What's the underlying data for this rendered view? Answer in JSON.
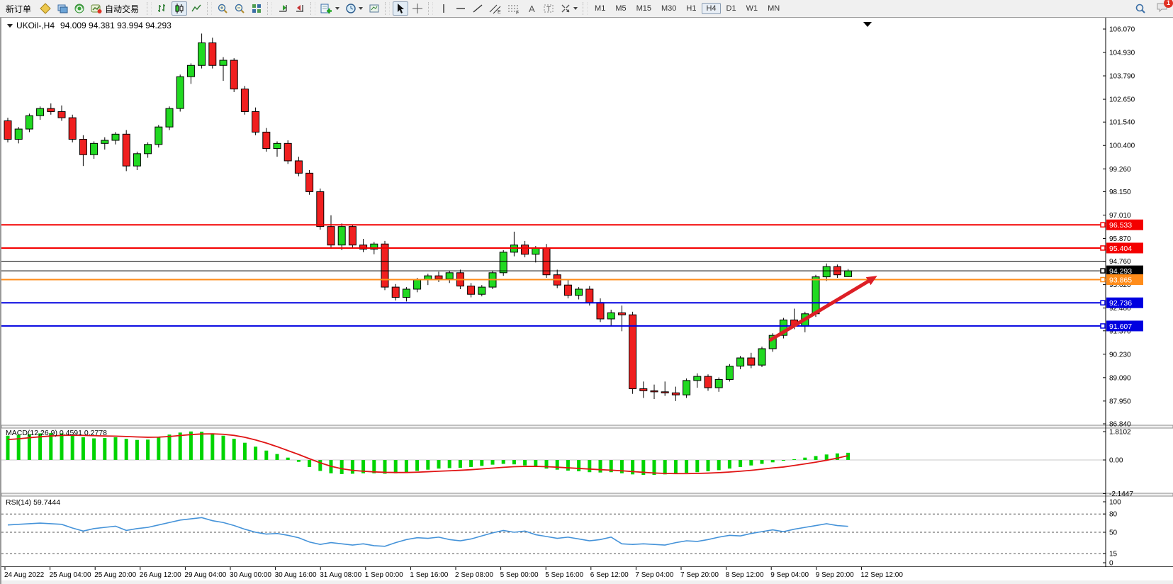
{
  "toolbar": {
    "new_order_label": "新订单",
    "auto_trading_label": "自动交易",
    "timeframes": [
      "M1",
      "M5",
      "M15",
      "M30",
      "H1",
      "H4",
      "D1",
      "W1",
      "MN"
    ],
    "active_timeframe": "H4",
    "notification_count": "1"
  },
  "chart_data": {
    "type": "candlestick+indicators",
    "symbol_period": "UKOil-,H4",
    "ohlc_line": "94.009 94.381 93.994 94.293",
    "accent_colors": {
      "bull": "#21d921",
      "bear": "#f01f1f",
      "wick": "#000000",
      "macd_hist": "#00d400",
      "macd_signal": "#e01515",
      "rsi_line": "#4593d9",
      "arrow": "#dd1f26",
      "line_red": "#f40000",
      "line_orange": "#ff8c1a",
      "line_blue": "#0000e0",
      "line_black": "#000000"
    },
    "price_axis_labels": [
      "106.070",
      "104.930",
      "103.790",
      "102.650",
      "101.540",
      "100.400",
      "99.260",
      "98.150",
      "97.010",
      "95.870",
      "94.760",
      "93.620",
      "92.480",
      "91.370",
      "90.230",
      "89.090",
      "87.950",
      "86.840"
    ],
    "h_lines": [
      {
        "price": 96.533,
        "label": "96.533",
        "color": "#f40000",
        "width": 2,
        "badge": true
      },
      {
        "price": 95.404,
        "label": "95.404",
        "color": "#f40000",
        "width": 2,
        "badge": true
      },
      {
        "price": 94.76,
        "label": "",
        "color": "#000000",
        "width": 1,
        "badge": false
      },
      {
        "price": 94.293,
        "label": "94.293",
        "color": "#000000",
        "width": 1,
        "badge": true
      },
      {
        "price": 93.865,
        "label": "93.865",
        "color": "#ff8c1a",
        "width": 2,
        "badge": true
      },
      {
        "price": 92.736,
        "label": "92.736",
        "color": "#0000e0",
        "width": 2,
        "badge": true
      },
      {
        "price": 91.607,
        "label": "91.607",
        "color": "#0000e0",
        "width": 2,
        "badge": true
      }
    ],
    "candles": [
      [
        101.6,
        101.75,
        100.55,
        100.7
      ],
      [
        100.7,
        101.3,
        100.5,
        101.2
      ],
      [
        101.2,
        101.95,
        101.05,
        101.85
      ],
      [
        101.85,
        102.3,
        101.65,
        102.2
      ],
      [
        102.2,
        102.45,
        101.9,
        102.05
      ],
      [
        102.05,
        102.35,
        101.6,
        101.75
      ],
      [
        101.75,
        101.9,
        100.55,
        100.7
      ],
      [
        100.7,
        100.9,
        99.4,
        99.95
      ],
      [
        99.95,
        100.6,
        99.75,
        100.5
      ],
      [
        100.5,
        100.8,
        100.2,
        100.65
      ],
      [
        100.65,
        101.05,
        100.45,
        100.95
      ],
      [
        100.95,
        101.15,
        99.15,
        99.4
      ],
      [
        99.4,
        100.1,
        99.2,
        100.0
      ],
      [
        100.0,
        100.55,
        99.8,
        100.45
      ],
      [
        100.45,
        101.4,
        100.3,
        101.3
      ],
      [
        101.3,
        102.3,
        101.15,
        102.2
      ],
      [
        102.2,
        103.85,
        102.05,
        103.75
      ],
      [
        103.75,
        104.4,
        103.4,
        104.3
      ],
      [
        104.3,
        105.85,
        104.15,
        105.4
      ],
      [
        105.4,
        105.65,
        104.15,
        104.3
      ],
      [
        104.3,
        104.7,
        103.55,
        104.55
      ],
      [
        104.55,
        104.65,
        103.0,
        103.15
      ],
      [
        103.15,
        103.3,
        101.9,
        102.05
      ],
      [
        102.05,
        102.25,
        100.9,
        101.05
      ],
      [
        101.05,
        101.25,
        100.1,
        100.25
      ],
      [
        100.25,
        100.6,
        99.85,
        100.5
      ],
      [
        100.5,
        100.65,
        99.5,
        99.65
      ],
      [
        99.65,
        99.85,
        98.9,
        99.05
      ],
      [
        99.05,
        99.2,
        98.0,
        98.15
      ],
      [
        98.15,
        98.3,
        96.3,
        96.45
      ],
      [
        96.45,
        97.0,
        95.4,
        95.55
      ],
      [
        95.55,
        96.6,
        95.3,
        96.45
      ],
      [
        96.45,
        96.55,
        95.4,
        95.55
      ],
      [
        95.55,
        95.85,
        95.2,
        95.35
      ],
      [
        95.35,
        95.7,
        95.1,
        95.6
      ],
      [
        95.6,
        95.75,
        93.35,
        93.5
      ],
      [
        93.5,
        93.65,
        92.85,
        93.0
      ],
      [
        93.0,
        93.5,
        92.8,
        93.4
      ],
      [
        93.4,
        93.95,
        93.25,
        93.85
      ],
      [
        93.85,
        94.15,
        93.6,
        94.05
      ],
      [
        94.05,
        94.25,
        93.75,
        93.9
      ],
      [
        93.9,
        94.3,
        93.7,
        94.2
      ],
      [
        94.2,
        94.35,
        93.4,
        93.55
      ],
      [
        93.55,
        93.7,
        93.0,
        93.15
      ],
      [
        93.15,
        93.6,
        93.05,
        93.5
      ],
      [
        93.5,
        94.3,
        93.4,
        94.2
      ],
      [
        94.2,
        95.3,
        94.05,
        95.2
      ],
      [
        95.2,
        96.2,
        95.0,
        95.55
      ],
      [
        95.55,
        95.75,
        94.95,
        95.1
      ],
      [
        95.1,
        95.5,
        94.7,
        95.4
      ],
      [
        95.4,
        95.6,
        93.95,
        94.1
      ],
      [
        94.1,
        94.35,
        93.45,
        93.6
      ],
      [
        93.6,
        93.85,
        92.95,
        93.1
      ],
      [
        93.1,
        93.5,
        92.9,
        93.4
      ],
      [
        93.4,
        93.55,
        92.6,
        92.75
      ],
      [
        92.75,
        92.95,
        91.8,
        91.95
      ],
      [
        91.95,
        92.4,
        91.6,
        92.25
      ],
      [
        92.25,
        92.6,
        91.35,
        92.15
      ],
      [
        92.15,
        92.3,
        88.3,
        88.55
      ],
      [
        88.55,
        88.9,
        88.1,
        88.45
      ],
      [
        88.45,
        88.75,
        88.05,
        88.4
      ],
      [
        88.4,
        88.9,
        88.2,
        88.35
      ],
      [
        88.35,
        88.65,
        87.95,
        88.25
      ],
      [
        88.25,
        89.05,
        88.1,
        88.95
      ],
      [
        88.95,
        89.3,
        88.6,
        89.15
      ],
      [
        89.15,
        89.25,
        88.45,
        88.6
      ],
      [
        88.6,
        89.1,
        88.4,
        89.0
      ],
      [
        89.0,
        89.75,
        88.9,
        89.65
      ],
      [
        89.65,
        90.15,
        89.5,
        90.05
      ],
      [
        90.05,
        90.3,
        89.55,
        89.7
      ],
      [
        89.7,
        90.6,
        89.6,
        90.5
      ],
      [
        90.5,
        91.25,
        90.35,
        91.15
      ],
      [
        91.15,
        92.0,
        91.0,
        91.9
      ],
      [
        91.9,
        92.45,
        91.45,
        91.6
      ],
      [
        91.6,
        92.3,
        91.3,
        92.2
      ],
      [
        92.2,
        94.1,
        92.05,
        94.0
      ],
      [
        94.0,
        94.65,
        93.8,
        94.5
      ],
      [
        94.5,
        94.6,
        93.95,
        94.1
      ],
      [
        94.009,
        94.381,
        93.994,
        94.293
      ]
    ],
    "arrow": {
      "from_index": 70.7,
      "from_price": 90.9,
      "to_index": 80.7,
      "to_price": 94.05
    },
    "macd": {
      "label": "MACD(12,26,9) 0.4591 0.2778",
      "axis_labels": [
        "1.8102",
        "0.00",
        "-2.1447"
      ],
      "histogram": [
        1.55,
        1.6,
        1.65,
        1.7,
        1.72,
        1.7,
        1.6,
        1.45,
        1.38,
        1.4,
        1.45,
        1.35,
        1.28,
        1.3,
        1.45,
        1.62,
        1.75,
        1.82,
        1.8,
        1.7,
        1.55,
        1.35,
        1.1,
        0.85,
        0.6,
        0.38,
        0.15,
        -0.12,
        -0.45,
        -0.7,
        -0.85,
        -0.9,
        -0.88,
        -0.85,
        -0.85,
        -0.88,
        -0.85,
        -0.78,
        -0.7,
        -0.62,
        -0.55,
        -0.52,
        -0.5,
        -0.45,
        -0.38,
        -0.3,
        -0.25,
        -0.28,
        -0.35,
        -0.45,
        -0.55,
        -0.62,
        -0.68,
        -0.72,
        -0.78,
        -0.8,
        -0.78,
        -0.85,
        -0.92,
        -0.95,
        -0.95,
        -0.92,
        -0.88,
        -0.82,
        -0.78,
        -0.72,
        -0.65,
        -0.55,
        -0.45,
        -0.35,
        -0.25,
        -0.15,
        -0.05,
        0.05,
        0.15,
        0.25,
        0.35,
        0.42,
        0.4591
      ],
      "signal": [
        1.3,
        1.35,
        1.42,
        1.48,
        1.53,
        1.57,
        1.58,
        1.57,
        1.55,
        1.53,
        1.52,
        1.5,
        1.47,
        1.45,
        1.46,
        1.5,
        1.56,
        1.62,
        1.66,
        1.67,
        1.64,
        1.57,
        1.45,
        1.28,
        1.08,
        0.85,
        0.6,
        0.35,
        0.08,
        -0.18,
        -0.4,
        -0.56,
        -0.66,
        -0.72,
        -0.76,
        -0.79,
        -0.8,
        -0.8,
        -0.78,
        -0.75,
        -0.72,
        -0.69,
        -0.66,
        -0.62,
        -0.57,
        -0.52,
        -0.47,
        -0.43,
        -0.41,
        -0.41,
        -0.43,
        -0.46,
        -0.5,
        -0.54,
        -0.58,
        -0.62,
        -0.65,
        -0.69,
        -0.74,
        -0.79,
        -0.83,
        -0.86,
        -0.87,
        -0.87,
        -0.86,
        -0.84,
        -0.81,
        -0.77,
        -0.72,
        -0.66,
        -0.59,
        -0.51,
        -0.45,
        -0.35,
        -0.25,
        -0.14,
        -0.02,
        0.12,
        0.2778
      ]
    },
    "rsi": {
      "label": "RSI(14) 59.7444",
      "axis_labels": [
        "100",
        "80",
        "50",
        "15",
        "0"
      ],
      "levels": [
        80,
        50,
        15
      ],
      "values": [
        62,
        63,
        64,
        65,
        64,
        63,
        57,
        52,
        56,
        58,
        60,
        53,
        56,
        58,
        62,
        66,
        70,
        72,
        74,
        69,
        66,
        61,
        55,
        50,
        47,
        48,
        45,
        41,
        34,
        30,
        33,
        31,
        29,
        31,
        28,
        27,
        33,
        38,
        41,
        40,
        42,
        38,
        36,
        39,
        44,
        49,
        53,
        50,
        52,
        46,
        43,
        40,
        42,
        39,
        36,
        38,
        42,
        31,
        30,
        31,
        30,
        29,
        33,
        36,
        35,
        38,
        42,
        45,
        44,
        48,
        51,
        54,
        51,
        55,
        58,
        61,
        64,
        61,
        59.7444
      ]
    },
    "time_axis_labels": [
      "24 Aug 2022",
      "25 Aug 04:00",
      "25 Aug 20:00",
      "26 Aug 12:00",
      "29 Aug 04:00",
      "30 Aug 00:00",
      "30 Aug 16:00",
      "31 Aug 08:00",
      "1 Sep 00:00",
      "1 Sep 16:00",
      "2 Sep 08:00",
      "5 Sep 00:00",
      "5 Sep 16:00",
      "6 Sep 12:00",
      "7 Sep 04:00",
      "7 Sep 20:00",
      "8 Sep 12:00",
      "9 Sep 04:00",
      "9 Sep 20:00",
      "12 Sep 12:00"
    ]
  }
}
